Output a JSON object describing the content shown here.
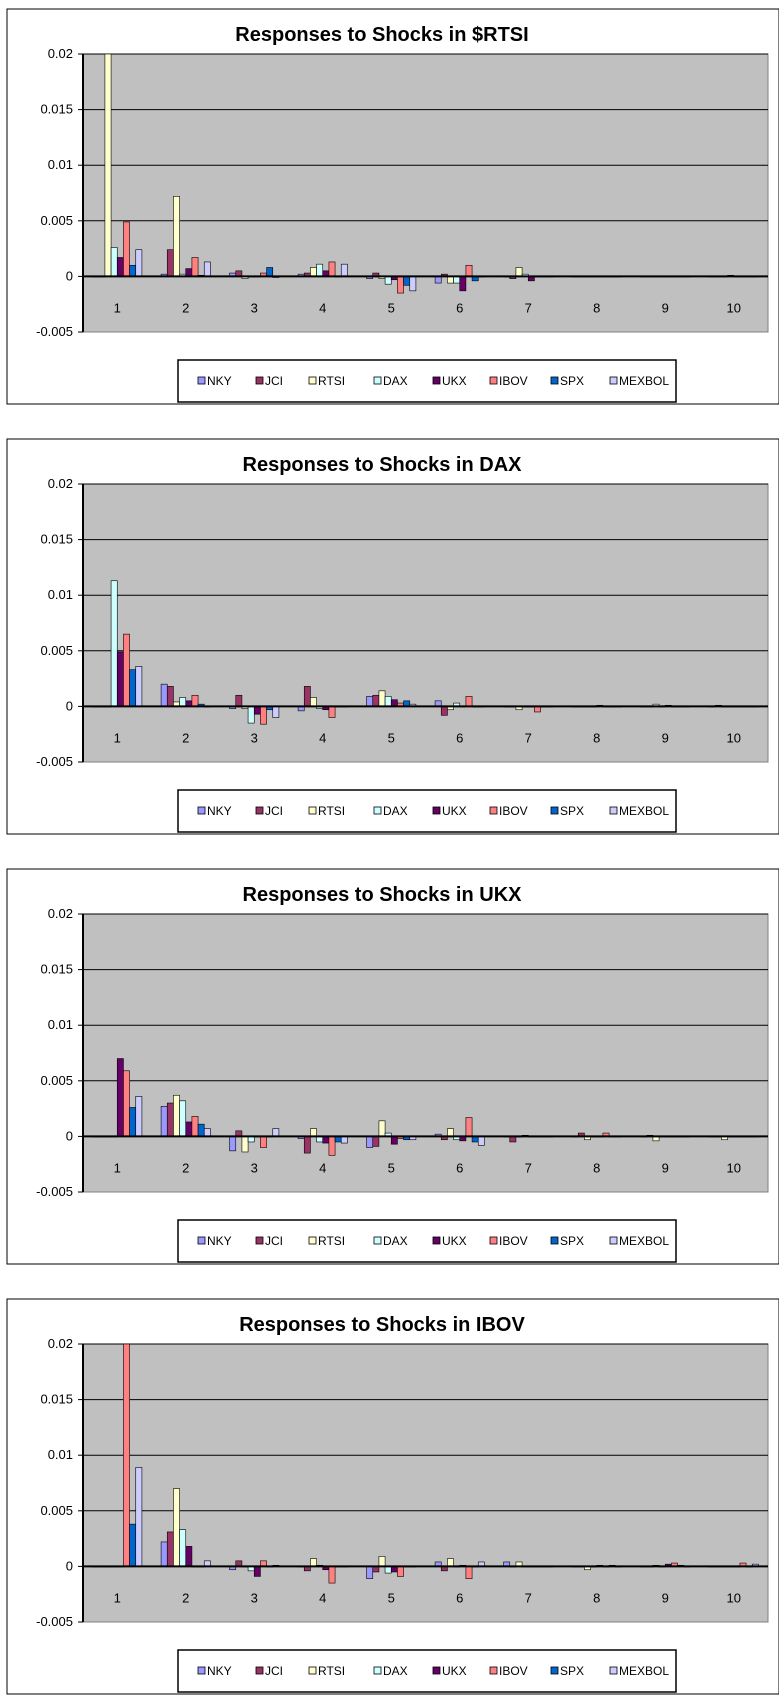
{
  "chart_data": [
    {
      "type": "bar",
      "title": "Responses to Shocks in $RTSI",
      "xlabel": "",
      "ylabel": "",
      "ylim": [
        -0.005,
        0.02
      ],
      "yticks": [
        "0.02",
        "0.015",
        "0.01",
        "0.005",
        "0",
        "-0.005"
      ],
      "categories": [
        "1",
        "2",
        "3",
        "4",
        "5",
        "6",
        "7",
        "8",
        "9",
        "10"
      ],
      "legend_position": "bottom",
      "grid": true,
      "series": [
        {
          "name": "NKY",
          "color": "#9999ff",
          "values": [
            0.0,
            0.0002,
            0.0003,
            0.0002,
            -0.0002,
            -0.0006,
            0.0,
            0.0,
            0.0,
            0.0
          ]
        },
        {
          "name": "JCI",
          "color": "#993366",
          "values": [
            0.0,
            0.0024,
            0.0005,
            0.0003,
            0.0003,
            0.0002,
            -0.0002,
            0.0,
            0.0,
            0.0
          ]
        },
        {
          "name": "RTSI",
          "color": "#ffffcc",
          "values": [
            0.0205,
            0.0072,
            -0.0002,
            0.0008,
            -0.0002,
            -0.0006,
            0.0008,
            0.0,
            0.0,
            0.0
          ]
        },
        {
          "name": "DAX",
          "color": "#ccffff",
          "values": [
            0.0026,
            0.0002,
            0.0,
            0.0011,
            -0.0007,
            -0.0006,
            0.0002,
            0.0,
            0.0,
            0.0001
          ]
        },
        {
          "name": "UKX",
          "color": "#660066",
          "values": [
            0.0017,
            0.0007,
            0.0,
            0.0005,
            -0.0003,
            -0.0013,
            -0.0004,
            0.0,
            0.0,
            0.0
          ]
        },
        {
          "name": "IBOV",
          "color": "#ff8080",
          "values": [
            0.0049,
            0.0017,
            0.0003,
            0.0013,
            -0.0015,
            0.001,
            0.0,
            0.0,
            0.0,
            0.0
          ]
        },
        {
          "name": "SPX",
          "color": "#0066cc",
          "values": [
            0.001,
            0.0001,
            0.0008,
            0.0,
            -0.0008,
            -0.0004,
            0.0,
            0.0,
            0.0,
            0.0
          ]
        },
        {
          "name": "MEXBOL",
          "color": "#ccccff",
          "values": [
            0.0024,
            0.0013,
            -0.0001,
            0.0011,
            -0.0013,
            0.0,
            0.0,
            0.0,
            0.0,
            0.0
          ]
        }
      ]
    },
    {
      "type": "bar",
      "title": "Responses to Shocks in DAX",
      "xlabel": "",
      "ylabel": "",
      "ylim": [
        -0.005,
        0.02
      ],
      "yticks": [
        "0.02",
        "0.015",
        "0.01",
        "0.005",
        "0",
        "-0.005"
      ],
      "categories": [
        "1",
        "2",
        "3",
        "4",
        "5",
        "6",
        "7",
        "8",
        "9",
        "10"
      ],
      "legend_position": "bottom",
      "grid": true,
      "series": [
        {
          "name": "NKY",
          "color": "#9999ff",
          "values": [
            0.0,
            0.002,
            -0.0002,
            -0.0004,
            0.0009,
            0.0005,
            0.0,
            0.0,
            0.0,
            0.0
          ]
        },
        {
          "name": "JCI",
          "color": "#993366",
          "values": [
            0.0,
            0.0018,
            0.001,
            0.0018,
            0.001,
            -0.0008,
            0.0,
            0.0,
            0.0,
            0.0001
          ]
        },
        {
          "name": "RTSI",
          "color": "#ffffcc",
          "values": [
            0.0,
            0.0004,
            -0.0002,
            0.0008,
            0.0014,
            -0.0003,
            -0.0003,
            0.0,
            0.0002,
            0.0
          ]
        },
        {
          "name": "DAX",
          "color": "#ccffff",
          "values": [
            0.0113,
            0.0008,
            -0.0015,
            -0.0002,
            0.0009,
            0.0003,
            0.0,
            0.0,
            0.0,
            0.0
          ]
        },
        {
          "name": "UKX",
          "color": "#660066",
          "values": [
            0.0049,
            0.0005,
            -0.0007,
            -0.0003,
            0.0006,
            0.0,
            0.0,
            0.0001,
            0.0001,
            0.0
          ]
        },
        {
          "name": "IBOV",
          "color": "#ff8080",
          "values": [
            0.0065,
            0.001,
            -0.0016,
            -0.001,
            0.0003,
            0.0009,
            -0.0005,
            0.0,
            0.0,
            0.0
          ]
        },
        {
          "name": "SPX",
          "color": "#0066cc",
          "values": [
            0.0033,
            0.0002,
            -0.0003,
            0.0,
            0.0005,
            0.0,
            0.0,
            0.0,
            0.0,
            0.0
          ]
        },
        {
          "name": "MEXBOL",
          "color": "#ccccff",
          "values": [
            0.0036,
            0.0,
            -0.001,
            0.0,
            0.0002,
            0.0,
            0.0,
            0.0,
            0.0,
            0.0
          ]
        }
      ]
    },
    {
      "type": "bar",
      "title": "Responses to Shocks in UKX",
      "xlabel": "",
      "ylabel": "",
      "ylim": [
        -0.005,
        0.02
      ],
      "yticks": [
        "0.02",
        "0.015",
        "0.01",
        "0.005",
        "0",
        "-0.005"
      ],
      "categories": [
        "1",
        "2",
        "3",
        "4",
        "5",
        "6",
        "7",
        "8",
        "9",
        "10"
      ],
      "legend_position": "bottom",
      "grid": true,
      "series": [
        {
          "name": "NKY",
          "color": "#9999ff",
          "values": [
            0.0,
            0.0027,
            -0.0013,
            -0.0002,
            -0.001,
            0.0002,
            0.0,
            0.0,
            0.0,
            0.0
          ]
        },
        {
          "name": "JCI",
          "color": "#993366",
          "values": [
            0.0,
            0.003,
            0.0005,
            -0.0015,
            -0.0009,
            -0.0003,
            -0.0005,
            0.0003,
            0.0001,
            0.0
          ]
        },
        {
          "name": "RTSI",
          "color": "#ffffcc",
          "values": [
            0.0,
            0.0037,
            -0.0014,
            0.0007,
            0.0014,
            0.0007,
            0.0,
            -0.0003,
            -0.0004,
            -0.0003
          ]
        },
        {
          "name": "DAX",
          "color": "#ccffff",
          "values": [
            0.0,
            0.0032,
            -0.0005,
            -0.0005,
            0.0003,
            -0.0003,
            0.0001,
            0.0,
            0.0,
            0.0
          ]
        },
        {
          "name": "UKX",
          "color": "#660066",
          "values": [
            0.007,
            0.0013,
            0.0,
            -0.0006,
            -0.0007,
            -0.0004,
            0.0,
            0.0,
            0.0,
            0.0
          ]
        },
        {
          "name": "IBOV",
          "color": "#ff8080",
          "values": [
            0.0059,
            0.0018,
            -0.001,
            -0.0017,
            -0.0002,
            0.0017,
            0.0,
            0.0003,
            0.0,
            0.0
          ]
        },
        {
          "name": "SPX",
          "color": "#0066cc",
          "values": [
            0.0026,
            0.0011,
            0.0,
            -0.0005,
            -0.0003,
            -0.0005,
            0.0,
            0.0,
            0.0,
            0.0
          ]
        },
        {
          "name": "MEXBOL",
          "color": "#ccccff",
          "values": [
            0.0036,
            0.0007,
            0.0007,
            -0.0006,
            -0.0003,
            -0.0008,
            0.0,
            0.0,
            0.0,
            0.0
          ]
        }
      ]
    },
    {
      "type": "bar",
      "title": "Responses to Shocks in IBOV",
      "xlabel": "",
      "ylabel": "",
      "ylim": [
        -0.005,
        0.02
      ],
      "yticks": [
        "0.02",
        "0.015",
        "0.01",
        "0.005",
        "0",
        "-0.005"
      ],
      "categories": [
        "1",
        "2",
        "3",
        "4",
        "5",
        "6",
        "7",
        "8",
        "9",
        "10"
      ],
      "legend_position": "bottom",
      "grid": true,
      "series": [
        {
          "name": "NKY",
          "color": "#9999ff",
          "values": [
            0.0,
            0.0022,
            -0.0003,
            0.0,
            -0.0011,
            0.0004,
            0.0004,
            0.0,
            0.0,
            0.0
          ]
        },
        {
          "name": "JCI",
          "color": "#993366",
          "values": [
            0.0,
            0.0031,
            0.0005,
            -0.0004,
            -0.0005,
            -0.0004,
            0.0,
            0.0,
            0.0,
            0.0
          ]
        },
        {
          "name": "RTSI",
          "color": "#ffffcc",
          "values": [
            0.0,
            0.007,
            0.0,
            0.0007,
            0.0009,
            0.0007,
            0.0004,
            -0.0003,
            0.0001,
            0.0
          ]
        },
        {
          "name": "DAX",
          "color": "#ccffff",
          "values": [
            0.0,
            0.0033,
            -0.0004,
            0.0001,
            -0.0006,
            0.0,
            0.0,
            0.0,
            0.0,
            0.0
          ]
        },
        {
          "name": "UKX",
          "color": "#660066",
          "values": [
            0.0,
            0.0018,
            -0.0009,
            -0.0003,
            -0.0005,
            0.0001,
            0.0,
            0.0001,
            0.0002,
            0.0
          ]
        },
        {
          "name": "IBOV",
          "color": "#ff8080",
          "values": [
            0.0205,
            0.0,
            0.0005,
            -0.0015,
            -0.0009,
            -0.0011,
            0.0,
            0.0,
            0.0003,
            0.0003
          ]
        },
        {
          "name": "SPX",
          "color": "#0066cc",
          "values": [
            0.0038,
            0.0,
            0.0,
            0.0,
            0.0,
            0.0,
            0.0,
            0.0001,
            0.0001,
            0.0
          ]
        },
        {
          "name": "MEXBOL",
          "color": "#ccccff",
          "values": [
            0.0089,
            0.0005,
            0.0001,
            0.0,
            0.0,
            0.0004,
            0.0,
            0.0,
            0.0,
            0.0002
          ]
        }
      ]
    }
  ]
}
